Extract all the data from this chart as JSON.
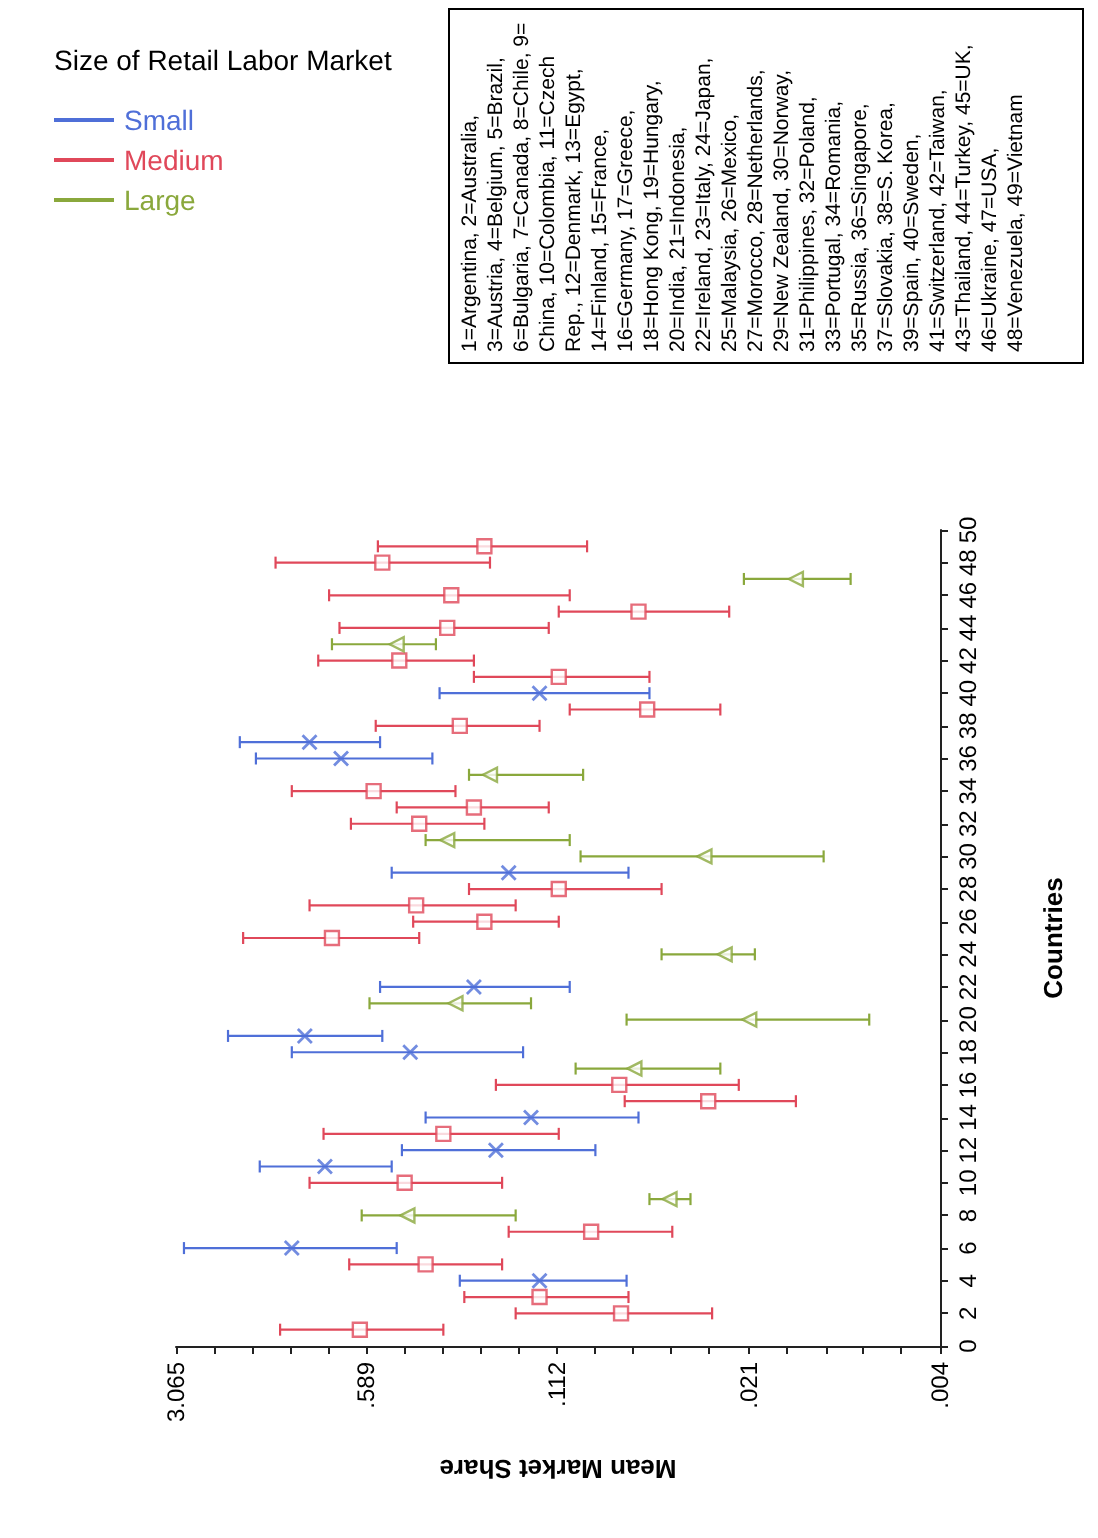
{
  "chart_data": {
    "type": "scatter",
    "xlabel": "Mean Market Share",
    "ylabel": "Countries",
    "legend_title": "Size of Retail Labor Market",
    "legend": "top left",
    "log": "x",
    "grid": false,
    "ylim": [
      0,
      50
    ],
    "yticks": [
      0,
      2,
      4,
      6,
      8,
      10,
      12,
      14,
      16,
      18,
      20,
      22,
      24,
      26,
      28,
      30,
      32,
      34,
      36,
      38,
      40,
      42,
      44,
      46,
      48,
      50
    ],
    "xlim": [
      3.065,
      0.004
    ],
    "xticks": [
      3.065,
      {
        "value": 2.2,
        "label": null
      },
      {
        "value": 1.58,
        "label": null
      },
      {
        "value": 1.14,
        "label": null
      },
      {
        "value": 0.82,
        "label": null
      },
      {
        "value": 0.589,
        "label": ".589"
      },
      {
        "value": 0.423,
        "label": null
      },
      {
        "value": 0.304,
        "label": null
      },
      {
        "value": 0.218,
        "label": null
      },
      {
        "value": 0.156,
        "label": null
      },
      {
        "value": 0.112,
        "label": ".112"
      },
      {
        "value": 0.0805,
        "label": null
      },
      {
        "value": 0.0578,
        "label": null
      },
      {
        "value": 0.0415,
        "label": null
      },
      {
        "value": 0.0298,
        "label": null
      },
      {
        "value": 0.021,
        "label": ".021"
      },
      {
        "value": 0.0151,
        "label": null
      },
      {
        "value": 0.0108,
        "label": null
      },
      {
        "value": 0.0078,
        "label": null
      },
      {
        "value": 0.0056,
        "label": null
      },
      {
        "value": 0.004,
        "label": ".004"
      }
    ],
    "series": [
      {
        "name": "Small",
        "color": "#4f6fd8",
        "marker": "cross",
        "values": [
          4,
          6,
          11,
          12,
          14,
          18,
          19,
          22,
          29,
          36,
          37,
          40
        ],
        "x": [
          0.13,
          1.12,
          0.84,
          0.19,
          0.14,
          0.4,
          1.0,
          0.23,
          0.17,
          0.73,
          0.96,
          0.13
        ],
        "xerrors": [
          [
            0.061,
            0.26
          ],
          [
            0.45,
            2.86
          ],
          [
            0.47,
            1.48
          ],
          [
            0.08,
            0.43
          ],
          [
            0.055,
            0.35
          ],
          [
            0.15,
            1.12
          ],
          [
            0.51,
            1.95
          ],
          [
            0.1,
            0.52
          ],
          [
            0.06,
            0.47
          ],
          [
            0.33,
            1.53
          ],
          [
            0.52,
            1.76
          ],
          [
            0.05,
            0.31
          ]
        ]
      },
      {
        "name": "Medium",
        "color": "#e0485a",
        "marker": "square",
        "values": [
          1,
          2,
          3,
          5,
          7,
          10,
          13,
          15,
          16,
          25,
          26,
          27,
          28,
          32,
          33,
          34,
          38,
          39,
          41,
          42,
          44,
          45,
          46,
          48,
          49
        ],
        "x": [
          0.62,
          0.064,
          0.13,
          0.35,
          0.083,
          0.42,
          0.3,
          0.03,
          0.065,
          0.79,
          0.21,
          0.38,
          0.11,
          0.37,
          0.23,
          0.55,
          0.26,
          0.051,
          0.11,
          0.44,
          0.29,
          0.055,
          0.28,
          0.51,
          0.21
        ],
        "xerrors": [
          [
            0.3,
            1.24
          ],
          [
            0.029,
            0.16
          ],
          [
            0.06,
            0.25
          ],
          [
            0.18,
            0.68
          ],
          [
            0.041,
            0.17
          ],
          [
            0.18,
            0.96
          ],
          [
            0.11,
            0.85
          ],
          [
            0.014,
            0.062
          ],
          [
            0.023,
            0.19
          ],
          [
            0.37,
            1.71
          ],
          [
            0.11,
            0.39
          ],
          [
            0.16,
            0.96
          ],
          [
            0.045,
            0.24
          ],
          [
            0.21,
            0.67
          ],
          [
            0.12,
            0.45
          ],
          [
            0.27,
            1.12
          ],
          [
            0.13,
            0.54
          ],
          [
            0.027,
            0.1
          ],
          [
            0.05,
            0.23
          ],
          [
            0.23,
            0.89
          ],
          [
            0.12,
            0.74
          ],
          [
            0.025,
            0.11
          ],
          [
            0.1,
            0.81
          ],
          [
            0.2,
            1.29
          ],
          [
            0.086,
            0.53
          ]
        ]
      },
      {
        "name": "Large",
        "color": "#8aa83c",
        "marker": "triangle",
        "values": [
          8,
          9,
          17,
          20,
          21,
          24,
          30,
          31,
          35,
          43,
          47
        ],
        "x": [
          0.41,
          0.042,
          0.057,
          0.021,
          0.27,
          0.026,
          0.031,
          0.29,
          0.2,
          0.45,
          0.014
        ],
        "xerrors": [
          [
            0.16,
            0.61
          ],
          [
            0.035,
            0.05
          ],
          [
            0.027,
            0.095
          ],
          [
            0.0074,
            0.061
          ],
          [
            0.14,
            0.57
          ],
          [
            0.02,
            0.045
          ],
          [
            0.011,
            0.091
          ],
          [
            0.1,
            0.35
          ],
          [
            0.089,
            0.24
          ],
          [
            0.32,
            0.79
          ],
          [
            0.0087,
            0.022
          ]
        ]
      }
    ],
    "annotations": [
      "1=Argentina, 2=Australia, 3=Austria, 4=Belgium, 5=Brazil, 6=Bulgaria, 7=Canada, 8=Chile, 9= China, 10=Colombia, 11=Czech Rep., 12=Denmark, 13=Egypt, 14=Finland, 15=France, 16=Germany, 17=Greece, 18=Hong Kong, 19=Hungary, 20=India, 21=Indonesia, 22=Ireland, 23=Italy, 24=Japan, 25=Malaysia, 26=Mexico, 27=Morocco, 28=Netherlands, 29=New Zealand, 30=Norway, 31=Philippines, 32=Poland, 33=Portugal, 34=Romania, 35=Russia, 36=Singapore, 37=Slovakia, 38=S. Korea, 39=Spain, 40=Sweden, 41=Switzerland, 42=Taiwan, 43=Thailand, 44=Turkey, 45=UK, 46=Ukraine, 47=USA, 48=Venezuela, 49=Vietnam"
    ]
  }
}
